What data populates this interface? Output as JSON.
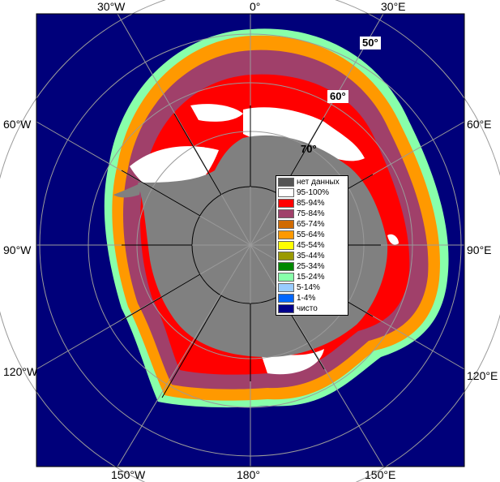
{
  "map": {
    "longitude_labels": {
      "top": [
        "30°W",
        "0°",
        "30°E"
      ],
      "left": [
        "60°W",
        "90°W",
        "120°W"
      ],
      "right": [
        "60°E",
        "90°E",
        "120°E"
      ],
      "bottom": [
        "150°W",
        "180°",
        "150°E"
      ]
    },
    "latitude_labels": [
      "50°",
      "60°",
      "70°"
    ],
    "colors": {
      "open_water": "#00007a",
      "land": "#808080",
      "no_data": "#505050",
      "grid": "#9a9a9a",
      "meridian": "#000000"
    }
  },
  "legend": {
    "items": [
      {
        "label": "нет данных",
        "color": "#555555"
      },
      {
        "label": "95-100%",
        "color": "#ffffff"
      },
      {
        "label": "85-94%",
        "color": "#ff0000"
      },
      {
        "label": "75-84%",
        "color": "#a0406a"
      },
      {
        "label": "65-74%",
        "color": "#d06a00"
      },
      {
        "label": "55-64%",
        "color": "#ff9900"
      },
      {
        "label": "45-54%",
        "color": "#ffff00"
      },
      {
        "label": "35-44%",
        "color": "#9a9a00"
      },
      {
        "label": "25-34%",
        "color": "#008800"
      },
      {
        "label": "15-24%",
        "color": "#88ffaa"
      },
      {
        "label": "5-14%",
        "color": "#99ccff"
      },
      {
        "label": "1-4%",
        "color": "#0066ff"
      },
      {
        "label": "чисто",
        "color": "#00008b"
      }
    ]
  }
}
